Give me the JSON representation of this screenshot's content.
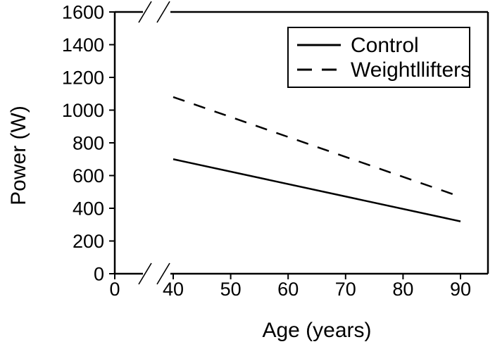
{
  "figure": {
    "background_color": "#ffffff",
    "ink_color": "#000000"
  },
  "chart_data": {
    "type": "line",
    "title": "",
    "xlabel": "Age (years)",
    "ylabel": "Power (W)",
    "x_ticks": [
      0,
      40,
      50,
      60,
      70,
      80,
      90
    ],
    "y_ticks": [
      0,
      200,
      400,
      600,
      800,
      1000,
      1200,
      1400,
      1600
    ],
    "ylim": [
      0,
      1600
    ],
    "x_plot_range": [
      40,
      90
    ],
    "x_axis_break": {
      "between": [
        0,
        40
      ],
      "marks": "double-slash",
      "on_edges": [
        "top",
        "bottom"
      ]
    },
    "grid": false,
    "legend": {
      "position": "top-right",
      "framed": true
    },
    "series": [
      {
        "name": "Control",
        "style": "solid",
        "x": [
          40,
          90
        ],
        "values": [
          700,
          320
        ]
      },
      {
        "name": "Weightllifters",
        "style": "dashed",
        "x": [
          40,
          90
        ],
        "values": [
          1080,
          470
        ]
      }
    ]
  }
}
